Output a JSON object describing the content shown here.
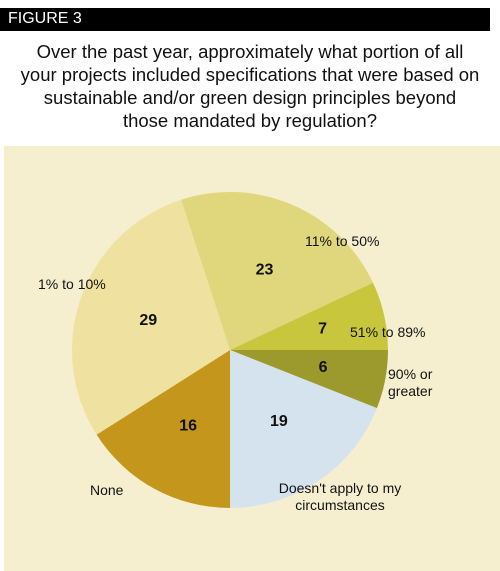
{
  "chart_data": {
    "type": "pie",
    "figure_label": "FIGURE 3",
    "title": "Over the past year, approximately what portion of all your projects included specifications that were based on sustainable and/or green design principles beyond those mandated by regulation?",
    "categories": [
      "90% or greater",
      "Doesn't apply to my circumstances",
      "None",
      "1% to 10%",
      "11% to 50%",
      "51% to 89%"
    ],
    "values": [
      6,
      19,
      16,
      29,
      23,
      7
    ],
    "colors": [
      "#9c9a2c",
      "#d5e3ef",
      "#c4961c",
      "#efe2a0",
      "#e0d67c",
      "#c8c63c"
    ]
  }
}
